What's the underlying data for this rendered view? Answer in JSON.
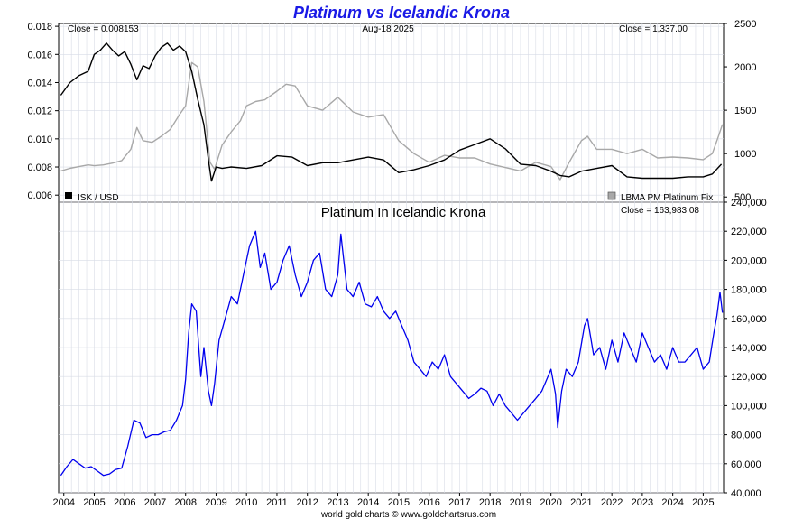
{
  "title": "Platinum vs Icelandic Krona",
  "footer": "world gold charts © www.goldchartsrus.com",
  "colors": {
    "title": "#1a1ae6",
    "isk": "#000000",
    "platinum": "#a8a8a8",
    "pt_isk": "#0000ee",
    "grid": "#d8dce6"
  },
  "chart_data": [
    {
      "type": "line",
      "name": "top-panel",
      "header": {
        "left": "Close = 0.008153",
        "center": "Aug-18  2025",
        "right": "Close = 1,337.00"
      },
      "legend": {
        "left": "ISK / USD",
        "right": "LBMA PM Platinum Fix",
        "placement": "bottom"
      },
      "y_left": {
        "ticks": [
          "0.018",
          "0.016",
          "0.014",
          "0.012",
          "0.010",
          "0.008",
          "0.006"
        ],
        "range": [
          0.0055,
          0.0182
        ]
      },
      "y_right": {
        "ticks": [
          "2500",
          "2000",
          "1500",
          "1000",
          "500"
        ],
        "range": [
          440,
          2500
        ]
      },
      "grid": true,
      "series": [
        {
          "name": "ISK / USD",
          "axis": "left",
          "x": [
            2003.9,
            2004.2,
            2004.5,
            2004.8,
            2005.0,
            2005.2,
            2005.4,
            2005.6,
            2005.8,
            2006.0,
            2006.2,
            2006.4,
            2006.6,
            2006.8,
            2007.0,
            2007.2,
            2007.4,
            2007.6,
            2007.8,
            2008.0,
            2008.2,
            2008.4,
            2008.6,
            2008.75,
            2008.85,
            2009.0,
            2009.2,
            2009.5,
            2010.0,
            2010.5,
            2011.0,
            2011.5,
            2012.0,
            2012.5,
            2013.0,
            2013.5,
            2014.0,
            2014.5,
            2015.0,
            2015.5,
            2016.0,
            2016.5,
            2017.0,
            2017.5,
            2018.0,
            2018.5,
            2019.0,
            2019.5,
            2020.0,
            2020.3,
            2020.6,
            2021.0,
            2021.5,
            2022.0,
            2022.5,
            2023.0,
            2023.5,
            2024.0,
            2024.5,
            2025.0,
            2025.3,
            2025.6
          ],
          "values": [
            0.0131,
            0.014,
            0.0145,
            0.0148,
            0.016,
            0.0163,
            0.0168,
            0.0163,
            0.0159,
            0.0162,
            0.0153,
            0.0142,
            0.0152,
            0.015,
            0.0159,
            0.0165,
            0.0168,
            0.0163,
            0.0166,
            0.0162,
            0.0148,
            0.0128,
            0.011,
            0.0085,
            0.007,
            0.008,
            0.0079,
            0.008,
            0.0079,
            0.0081,
            0.0088,
            0.0087,
            0.0081,
            0.0083,
            0.0083,
            0.0085,
            0.0087,
            0.0085,
            0.0076,
            0.0078,
            0.0081,
            0.0085,
            0.0092,
            0.0096,
            0.01,
            0.0093,
            0.0082,
            0.0081,
            0.0077,
            0.0074,
            0.0073,
            0.0077,
            0.0079,
            0.0081,
            0.0073,
            0.0072,
            0.0072,
            0.0072,
            0.0073,
            0.0073,
            0.0075,
            0.0082
          ]
        },
        {
          "name": "LBMA PM Platinum Fix",
          "axis": "right",
          "x": [
            2003.9,
            2004.2,
            2004.5,
            2004.8,
            2005.0,
            2005.3,
            2005.6,
            2005.9,
            2006.2,
            2006.4,
            2006.6,
            2006.9,
            2007.2,
            2007.5,
            2007.8,
            2008.0,
            2008.2,
            2008.4,
            2008.6,
            2008.8,
            2008.95,
            2009.2,
            2009.5,
            2009.8,
            2010.0,
            2010.3,
            2010.6,
            2011.0,
            2011.3,
            2011.6,
            2012.0,
            2012.5,
            2013.0,
            2013.5,
            2014.0,
            2014.5,
            2015.0,
            2015.5,
            2016.0,
            2016.5,
            2017.0,
            2017.5,
            2018.0,
            2018.5,
            2019.0,
            2019.5,
            2020.0,
            2020.3,
            2020.6,
            2021.0,
            2021.2,
            2021.5,
            2022.0,
            2022.5,
            2023.0,
            2023.5,
            2024.0,
            2024.5,
            2025.0,
            2025.3,
            2025.5,
            2025.63
          ],
          "values": [
            800,
            830,
            850,
            870,
            860,
            870,
            890,
            920,
            1050,
            1300,
            1150,
            1130,
            1200,
            1280,
            1450,
            1550,
            2050,
            2000,
            1600,
            900,
            820,
            1100,
            1250,
            1380,
            1550,
            1600,
            1620,
            1720,
            1800,
            1780,
            1550,
            1500,
            1650,
            1480,
            1420,
            1450,
            1150,
            1000,
            900,
            980,
            950,
            950,
            880,
            840,
            800,
            900,
            850,
            700,
            900,
            1150,
            1200,
            1050,
            1050,
            1000,
            1050,
            950,
            960,
            950,
            930,
            1000,
            1200,
            1337
          ]
        }
      ]
    },
    {
      "type": "line",
      "name": "bottom-panel",
      "title": "Platinum In Icelandic Krona",
      "header_right": "Close = 163,983.08",
      "y": {
        "ticks": [
          "240,000",
          "220,000",
          "200,000",
          "180,000",
          "160,000",
          "140,000",
          "120,000",
          "100,000",
          "80,000",
          "60,000",
          "40,000"
        ],
        "range": [
          40000,
          240000
        ]
      },
      "x_ticks": [
        "2004",
        "2005",
        "2006",
        "2007",
        "2008",
        "2009",
        "2010",
        "2011",
        "2012",
        "2013",
        "2014",
        "2015",
        "2016",
        "2017",
        "2018",
        "2019",
        "2020",
        "2021",
        "2022",
        "2023",
        "2024",
        "2025"
      ],
      "grid": true,
      "series": [
        {
          "name": "Platinum In Icelandic Krona",
          "x": [
            2003.9,
            2004.1,
            2004.3,
            2004.5,
            2004.7,
            2004.9,
            2005.1,
            2005.3,
            2005.5,
            2005.7,
            2005.9,
            2006.1,
            2006.3,
            2006.5,
            2006.7,
            2006.9,
            2007.1,
            2007.3,
            2007.5,
            2007.7,
            2007.9,
            2008.0,
            2008.1,
            2008.2,
            2008.35,
            2008.5,
            2008.6,
            2008.75,
            2008.85,
            2008.95,
            2009.1,
            2009.3,
            2009.5,
            2009.7,
            2009.9,
            2010.1,
            2010.3,
            2010.45,
            2010.6,
            2010.8,
            2011.0,
            2011.2,
            2011.4,
            2011.6,
            2011.8,
            2012.0,
            2012.2,
            2012.4,
            2012.6,
            2012.8,
            2013.0,
            2013.1,
            2013.3,
            2013.5,
            2013.7,
            2013.9,
            2014.1,
            2014.3,
            2014.5,
            2014.7,
            2014.9,
            2015.1,
            2015.3,
            2015.5,
            2015.7,
            2015.9,
            2016.1,
            2016.3,
            2016.5,
            2016.7,
            2016.9,
            2017.1,
            2017.3,
            2017.5,
            2017.7,
            2017.9,
            2018.1,
            2018.3,
            2018.5,
            2018.7,
            2018.9,
            2019.1,
            2019.3,
            2019.5,
            2019.7,
            2019.9,
            2020.0,
            2020.15,
            2020.22,
            2020.35,
            2020.5,
            2020.7,
            2020.9,
            2021.1,
            2021.2,
            2021.4,
            2021.6,
            2021.8,
            2022.0,
            2022.2,
            2022.4,
            2022.6,
            2022.8,
            2023.0,
            2023.2,
            2023.4,
            2023.6,
            2023.8,
            2024.0,
            2024.2,
            2024.4,
            2024.6,
            2024.8,
            2025.0,
            2025.2,
            2025.35,
            2025.45,
            2025.55,
            2025.63
          ],
          "values": [
            52000,
            58000,
            63000,
            60000,
            57000,
            58000,
            55000,
            52000,
            53000,
            56000,
            57000,
            72000,
            90000,
            88000,
            78000,
            80000,
            80000,
            82000,
            83000,
            90000,
            100000,
            118000,
            150000,
            170000,
            165000,
            120000,
            140000,
            110000,
            100000,
            115000,
            145000,
            160000,
            175000,
            170000,
            190000,
            210000,
            220000,
            195000,
            205000,
            180000,
            185000,
            200000,
            210000,
            190000,
            175000,
            185000,
            200000,
            205000,
            180000,
            175000,
            190000,
            218000,
            180000,
            175000,
            185000,
            170000,
            168000,
            175000,
            165000,
            160000,
            165000,
            155000,
            145000,
            130000,
            125000,
            120000,
            130000,
            125000,
            135000,
            120000,
            115000,
            110000,
            105000,
            108000,
            112000,
            110000,
            100000,
            108000,
            100000,
            95000,
            90000,
            95000,
            100000,
            105000,
            110000,
            120000,
            125000,
            108000,
            85000,
            110000,
            125000,
            120000,
            130000,
            155000,
            160000,
            135000,
            140000,
            125000,
            145000,
            130000,
            150000,
            140000,
            130000,
            150000,
            140000,
            130000,
            135000,
            125000,
            140000,
            130000,
            130000,
            135000,
            140000,
            125000,
            130000,
            150000,
            162000,
            178000,
            163983
          ]
        }
      ]
    }
  ]
}
